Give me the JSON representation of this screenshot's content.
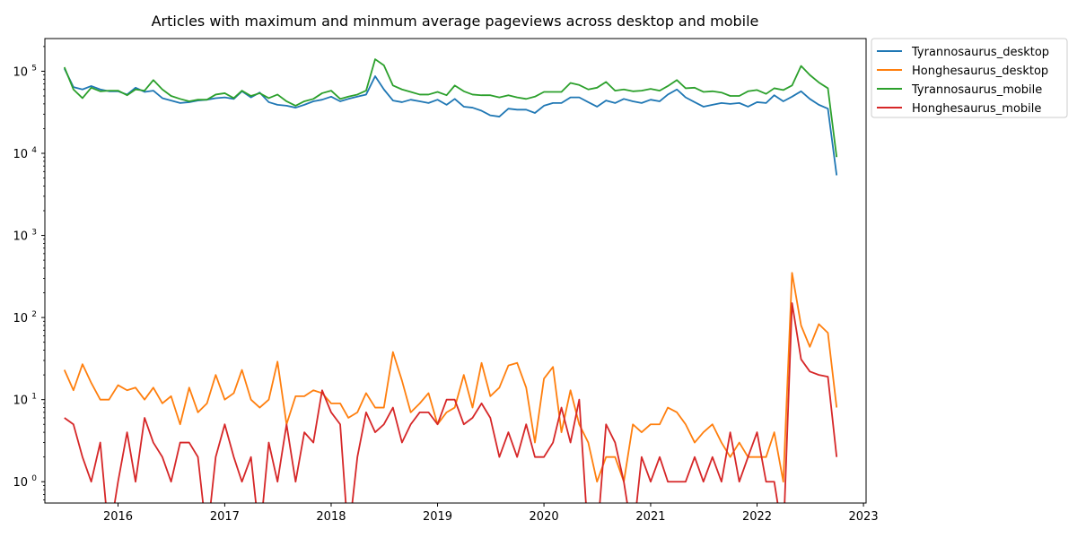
{
  "chart_data": {
    "type": "line",
    "title": "Articles with maximum and minmum average pageviews across desktop and mobile",
    "xlabel": "",
    "ylabel": "",
    "y_scale": "log",
    "ylim": [
      0.55,
      250000
    ],
    "xlim": [
      "2015-04-25",
      "2023-01-10"
    ],
    "grid": false,
    "legend_position": "outside top-right",
    "x_ticks": [
      {
        "date": "2016-01-01",
        "label": "2016"
      },
      {
        "date": "2017-01-01",
        "label": "2017"
      },
      {
        "date": "2018-01-01",
        "label": "2018"
      },
      {
        "date": "2019-01-01",
        "label": "2019"
      },
      {
        "date": "2020-01-01",
        "label": "2020"
      },
      {
        "date": "2021-01-01",
        "label": "2021"
      },
      {
        "date": "2022-01-01",
        "label": "2022"
      },
      {
        "date": "2023-01-01",
        "label": "2023"
      }
    ],
    "y_ticks": [
      {
        "value": 1,
        "base": "10",
        "exp": "0"
      },
      {
        "value": 10,
        "base": "10",
        "exp": "1"
      },
      {
        "value": 100,
        "base": "10",
        "exp": "2"
      },
      {
        "value": 1000,
        "base": "10",
        "exp": "3"
      },
      {
        "value": 10000,
        "base": "10",
        "exp": "4"
      },
      {
        "value": 100000,
        "base": "10",
        "exp": "5"
      }
    ],
    "x_start": "2015-07",
    "x_end": "2022-10",
    "x_frequency": "monthly",
    "series": [
      {
        "name": "Tyrannosaurus_desktop",
        "color": "#1f77b4",
        "values": [
          108000,
          64000,
          60000,
          66000,
          60000,
          57000,
          57000,
          52000,
          63000,
          56000,
          58000,
          47000,
          44000,
          41000,
          42000,
          44000,
          45000,
          47000,
          48000,
          46000,
          57000,
          48000,
          55000,
          42000,
          39000,
          38000,
          36000,
          39000,
          43000,
          45000,
          49000,
          43000,
          46000,
          49000,
          52000,
          87000,
          60000,
          44000,
          42000,
          45000,
          43000,
          41000,
          45000,
          39000,
          46000,
          37000,
          36000,
          33000,
          29000,
          28000,
          35000,
          34000,
          34000,
          31000,
          38000,
          41000,
          41000,
          48000,
          48000,
          42000,
          37000,
          44000,
          41000,
          46000,
          43000,
          41000,
          45000,
          43000,
          52000,
          60000,
          48000,
          42000,
          37000,
          39000,
          41000,
          40000,
          41000,
          37000,
          42000,
          41000,
          51000,
          43000,
          49000,
          57000,
          46000,
          39000,
          35000,
          5400
        ]
      },
      {
        "name": "Honghesaurus_desktop",
        "color": "#ff7f0e",
        "values": [
          23,
          13,
          27,
          16,
          10,
          10,
          15,
          13,
          14,
          10,
          14,
          9,
          11,
          5,
          14,
          7,
          9,
          20,
          10,
          12,
          23,
          10,
          8,
          10,
          29,
          5,
          11,
          11,
          13,
          12,
          9,
          9,
          6,
          7,
          12,
          8,
          8,
          38,
          17,
          7,
          9,
          12,
          5,
          7,
          8,
          20,
          8,
          28,
          11,
          14,
          26,
          28,
          14,
          3,
          18,
          25,
          4,
          13,
          5,
          3,
          1,
          2,
          2,
          1,
          5,
          4,
          5,
          5,
          8,
          7,
          5,
          3,
          4,
          5,
          3,
          2,
          3,
          2,
          2,
          2,
          4,
          1,
          350,
          80,
          44,
          83,
          65,
          8
        ]
      },
      {
        "name": "Tyrannosaurus_mobile",
        "color": "#2ca02c",
        "values": [
          112000,
          60000,
          47000,
          63000,
          57000,
          58000,
          58000,
          51000,
          60000,
          58000,
          78000,
          60000,
          50000,
          46000,
          43000,
          45000,
          45000,
          52000,
          54000,
          47000,
          58000,
          50000,
          54000,
          47000,
          52000,
          43000,
          38000,
          43000,
          46000,
          54000,
          58000,
          46000,
          49000,
          52000,
          58000,
          140000,
          118000,
          67000,
          60000,
          56000,
          52000,
          52000,
          56000,
          51000,
          67000,
          57000,
          52000,
          51000,
          51000,
          48000,
          51000,
          48000,
          46000,
          49000,
          56000,
          56000,
          56000,
          72000,
          68000,
          60000,
          63000,
          74000,
          58000,
          60000,
          57000,
          58000,
          61000,
          58000,
          66000,
          78000,
          62000,
          63000,
          56000,
          57000,
          55000,
          50000,
          50000,
          57000,
          59000,
          53000,
          62000,
          59000,
          67000,
          116000,
          90000,
          73000,
          62000,
          9000
        ]
      },
      {
        "name": "Honghesaurus_mobile",
        "color": "#d62728",
        "values": [
          6,
          5,
          2,
          1,
          3,
          0,
          1,
          4,
          1,
          6,
          3,
          2,
          1,
          3,
          3,
          2,
          0,
          2,
          5,
          2,
          1,
          2,
          0,
          3,
          1,
          5,
          1,
          4,
          3,
          13,
          7,
          5,
          0,
          2,
          7,
          4,
          5,
          8,
          3,
          5,
          7,
          7,
          5,
          10,
          10,
          5,
          6,
          9,
          6,
          2,
          4,
          2,
          5,
          2,
          2,
          3,
          8,
          3,
          10,
          0,
          0,
          5,
          3,
          1,
          0,
          2,
          1,
          2,
          1,
          1,
          1,
          2,
          1,
          2,
          1,
          4,
          1,
          2,
          4,
          1,
          1,
          0,
          150,
          31,
          22,
          20,
          19,
          2
        ]
      }
    ]
  }
}
